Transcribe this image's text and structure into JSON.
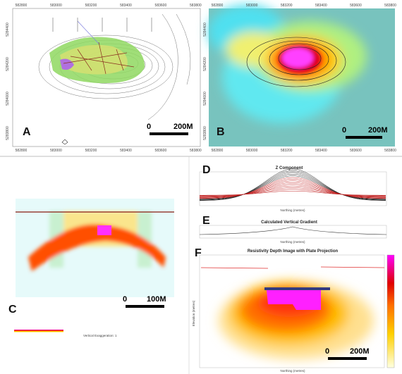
{
  "panels": [
    {
      "label": "A",
      "scale_zero": "0",
      "scale_length": "200M",
      "x_ticks": [
        "582800",
        "583000",
        "583200",
        "583400",
        "583600",
        "583800"
      ],
      "y_ticks": [
        "5284400",
        "5284200",
        "5284000",
        "5283800"
      ]
    },
    {
      "label": "B",
      "scale_zero": "0",
      "scale_length": "200M",
      "x_ticks": [
        "582800",
        "583000",
        "583200",
        "583400",
        "583600",
        "583800"
      ],
      "y_ticks": [
        "5284400",
        "5284200",
        "5284000",
        "5283800"
      ]
    },
    {
      "label": "C",
      "scale_zero": "0",
      "scale_length": "100M",
      "note": "Vertical Exaggeration: 1"
    },
    {
      "label": "D",
      "title": "Z Component",
      "x_axis": "Northing (metres)"
    },
    {
      "label": "E",
      "title": "Calculated Vertical Gradient",
      "x_axis": "Northing (metres)"
    },
    {
      "label": "F",
      "title": "Resistivity Depth Image with Plate Projection",
      "y_axis": "Elevation (metres)",
      "x_axis": "Northing (metres)",
      "scale_zero": "0",
      "scale_length": "200M"
    }
  ]
}
